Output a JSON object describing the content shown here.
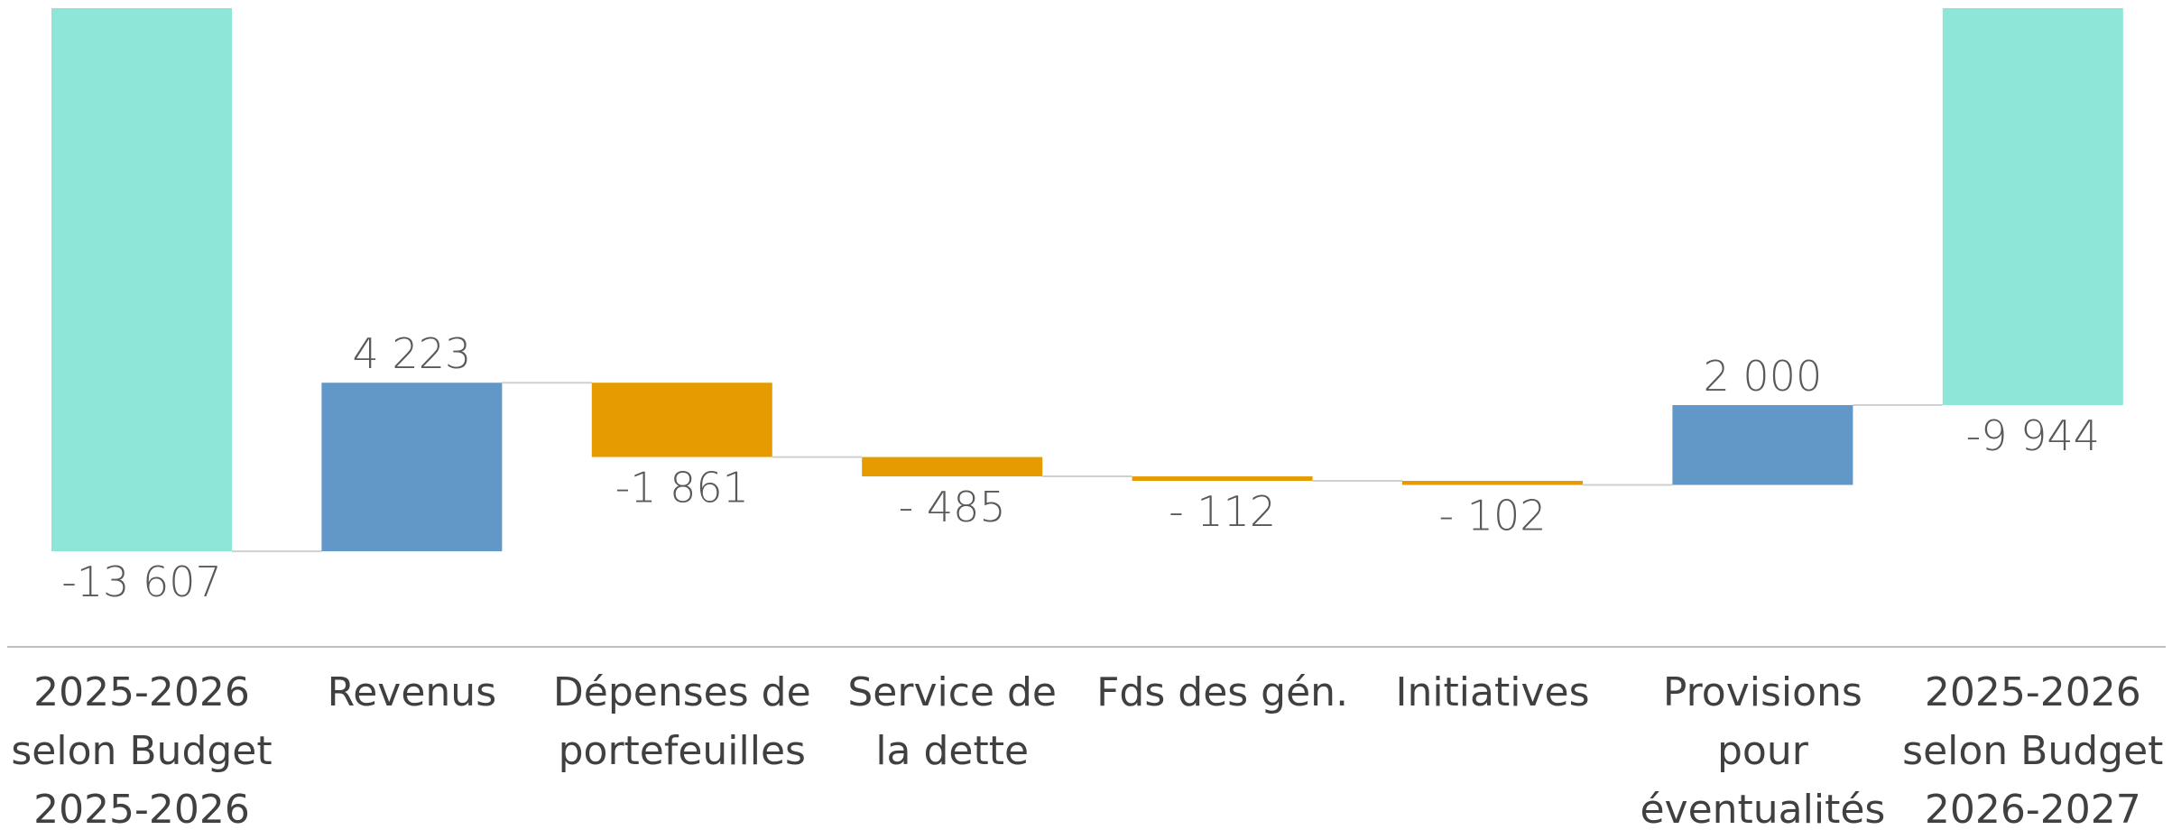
{
  "chart_data": {
    "type": "waterfall",
    "categories": [
      "2025-2026\nselon Budget\n2025-2026",
      "Revenus",
      "Dépenses de\nportefeuilles",
      "Service de\nla dette",
      "Fds des gén.",
      "Initiatives",
      "Provisions\npour\néventualités",
      "2025-2026\nselon Budget\n2026-2027"
    ],
    "values": [
      -13607,
      4223,
      -1861,
      -485,
      -112,
      -102,
      2000,
      -9944
    ],
    "value_labels": [
      "-13 607",
      "4 223",
      "-1 861",
      "- 485",
      "- 112",
      "- 102",
      "2 000",
      "-9 944"
    ],
    "measure": [
      "total",
      "relative",
      "relative",
      "relative",
      "relative",
      "relative",
      "relative",
      "total"
    ],
    "colors": {
      "total": "#8de6d8",
      "increase": "#6198c8",
      "decrease": "#e69b00"
    },
    "ylim": [
      -16000,
      0
    ]
  }
}
